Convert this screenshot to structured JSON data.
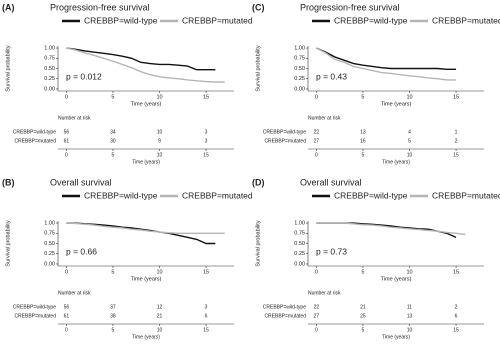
{
  "chart_data": [
    {
      "type": "line",
      "panel_label": "(A)",
      "title": "Progression-free survival",
      "ylabel": "Survival probability",
      "xlabel": "Time (years)",
      "p_value": "p = 0.012",
      "x": [
        0,
        1,
        2,
        3,
        4,
        5,
        6,
        7,
        8,
        9,
        10,
        11,
        12,
        13,
        14,
        15,
        16,
        17
      ],
      "series": [
        {
          "name": "CREBBP=wild-type",
          "color": "#111111",
          "values": [
            1.0,
            0.97,
            0.93,
            0.9,
            0.87,
            0.84,
            0.8,
            0.75,
            0.65,
            0.62,
            0.6,
            0.6,
            0.58,
            0.56,
            0.47,
            0.47,
            0.47,
            null
          ]
        },
        {
          "name": "CREBBP=mutated",
          "color": "#b5b5b5",
          "values": [
            1.0,
            0.95,
            0.88,
            0.82,
            0.75,
            0.68,
            0.6,
            0.52,
            0.42,
            0.35,
            0.3,
            0.27,
            0.25,
            0.22,
            0.2,
            0.18,
            0.17,
            0.17
          ]
        }
      ],
      "xlim": [
        -0.9,
        18
      ],
      "xticks": [
        0,
        5,
        10,
        15
      ],
      "ylim": [
        -0.05,
        1.05
      ],
      "yticks": [
        {
          "value": 0,
          "label": "0.00"
        },
        {
          "value": 0.25,
          "label": "0.25"
        },
        {
          "value": 0.5,
          "label": "0.50"
        },
        {
          "value": 0.75,
          "label": "0.75"
        },
        {
          "value": 1,
          "label": "1.00"
        }
      ],
      "risk_table": {
        "title": "Number at risk",
        "xlabel": "Time (years)",
        "times": [
          0,
          5,
          10,
          15
        ],
        "rows": [
          {
            "name": "CREBBP=wild-type",
            "values": [
              56,
              34,
              10,
              3
            ]
          },
          {
            "name": "CREBBP=mutated",
            "values": [
              61,
              30,
              9,
              3
            ]
          }
        ]
      }
    },
    {
      "type": "line",
      "panel_label": "(C)",
      "title": "Progression-free survival",
      "ylabel": "Survival probability",
      "xlabel": "Time (years)",
      "p_value": "p = 0.43",
      "x": [
        0,
        1,
        2,
        3,
        4,
        5,
        6,
        7,
        8,
        9,
        10,
        11,
        12,
        13,
        14,
        15,
        16,
        17
      ],
      "series": [
        {
          "name": "CREBBP=wild-type",
          "color": "#111111",
          "values": [
            1.0,
            0.9,
            0.78,
            0.7,
            0.62,
            0.58,
            0.55,
            0.52,
            0.5,
            0.5,
            0.5,
            0.5,
            0.5,
            0.5,
            0.48,
            0.48,
            null,
            null
          ]
        },
        {
          "name": "CREBBP=mutated",
          "color": "#b5b5b5",
          "values": [
            1.0,
            0.88,
            0.72,
            0.65,
            0.55,
            0.5,
            0.45,
            0.4,
            0.38,
            0.35,
            0.32,
            0.3,
            0.27,
            0.25,
            0.22,
            0.22,
            null,
            null
          ]
        }
      ],
      "xlim": [
        -0.9,
        18
      ],
      "xticks": [
        0,
        5,
        10,
        15
      ],
      "ylim": [
        -0.05,
        1.05
      ],
      "yticks": [
        {
          "value": 0,
          "label": "0.00"
        },
        {
          "value": 0.25,
          "label": "0.25"
        },
        {
          "value": 0.5,
          "label": "0.50"
        },
        {
          "value": 0.75,
          "label": "0.75"
        },
        {
          "value": 1,
          "label": "1.00"
        }
      ],
      "risk_table": {
        "title": "Number at risk",
        "xlabel": "Time (years)",
        "times": [
          0,
          5,
          10,
          15
        ],
        "rows": [
          {
            "name": "CREBBP=wild-type",
            "values": [
              22,
              13,
              4,
              1
            ]
          },
          {
            "name": "CREBBP=mutated",
            "values": [
              27,
              16,
              5,
              2
            ]
          }
        ]
      }
    },
    {
      "type": "line",
      "panel_label": "(B)",
      "title": "Overall survival",
      "ylabel": "Survival probability",
      "xlabel": "Time (years)",
      "p_value": "p = 0.66",
      "x": [
        0,
        1,
        2,
        3,
        4,
        5,
        6,
        7,
        8,
        9,
        10,
        11,
        12,
        13,
        14,
        15,
        16,
        17
      ],
      "series": [
        {
          "name": "CREBBP=wild-type",
          "color": "#111111",
          "values": [
            1.0,
            1.0,
            0.98,
            0.97,
            0.95,
            0.93,
            0.9,
            0.88,
            0.85,
            0.82,
            0.78,
            0.75,
            0.7,
            0.65,
            0.6,
            0.5,
            0.5,
            null
          ]
        },
        {
          "name": "CREBBP=mutated",
          "color": "#b5b5b5",
          "values": [
            1.0,
            0.99,
            0.97,
            0.95,
            0.92,
            0.9,
            0.88,
            0.85,
            0.83,
            0.8,
            0.78,
            0.76,
            0.75,
            0.75,
            0.75,
            0.75,
            0.75,
            0.75
          ]
        }
      ],
      "xlim": [
        -0.9,
        18
      ],
      "xticks": [
        0,
        5,
        10,
        15
      ],
      "ylim": [
        -0.05,
        1.05
      ],
      "yticks": [
        {
          "value": 0,
          "label": "0.00"
        },
        {
          "value": 0.25,
          "label": "0.25"
        },
        {
          "value": 0.5,
          "label": "0.50"
        },
        {
          "value": 0.75,
          "label": "0.75"
        },
        {
          "value": 1,
          "label": "1.00"
        }
      ],
      "risk_table": {
        "title": "Number at risk",
        "xlabel": "Time (years)",
        "times": [
          0,
          5,
          10,
          15
        ],
        "rows": [
          {
            "name": "CREBBP=wild-type",
            "values": [
              56,
              37,
              12,
              3
            ]
          },
          {
            "name": "CREBBP=mutated",
            "values": [
              61,
              38,
              21,
              6
            ]
          }
        ]
      }
    },
    {
      "type": "line",
      "panel_label": "(D)",
      "title": "Overall survival",
      "ylabel": "Survival probability",
      "xlabel": "Time (years)",
      "p_value": "p = 0.73",
      "x": [
        0,
        1,
        2,
        3,
        4,
        5,
        6,
        7,
        8,
        9,
        10,
        11,
        12,
        13,
        14,
        15,
        16,
        17
      ],
      "series": [
        {
          "name": "CREBBP=wild-type",
          "color": "#111111",
          "values": [
            1.0,
            1.0,
            1.0,
            1.0,
            1.0,
            0.98,
            0.97,
            0.95,
            0.93,
            0.9,
            0.88,
            0.86,
            0.85,
            0.8,
            0.75,
            0.65,
            null,
            null
          ]
        },
        {
          "name": "CREBBP=mutated",
          "color": "#b5b5b5",
          "values": [
            1.0,
            1.0,
            1.0,
            1.0,
            0.98,
            0.96,
            0.95,
            0.93,
            0.9,
            0.88,
            0.86,
            0.84,
            0.82,
            0.8,
            0.77,
            0.75,
            0.72,
            null
          ]
        }
      ],
      "xlim": [
        -0.9,
        18
      ],
      "xticks": [
        0,
        5,
        10,
        15
      ],
      "ylim": [
        -0.05,
        1.05
      ],
      "yticks": [
        {
          "value": 0,
          "label": "0.00"
        },
        {
          "value": 0.25,
          "label": "0.25"
        },
        {
          "value": 0.5,
          "label": "0.50"
        },
        {
          "value": 0.75,
          "label": "0.75"
        },
        {
          "value": 1,
          "label": "1.00"
        }
      ],
      "risk_table": {
        "title": "Number at risk",
        "xlabel": "Time (years)",
        "times": [
          0,
          5,
          10,
          15
        ],
        "rows": [
          {
            "name": "CREBBP=wild-type",
            "values": [
              22,
              21,
              11,
              2
            ]
          },
          {
            "name": "CREBBP=mutated",
            "values": [
              27,
              25,
              13,
              6
            ]
          }
        ]
      }
    }
  ]
}
